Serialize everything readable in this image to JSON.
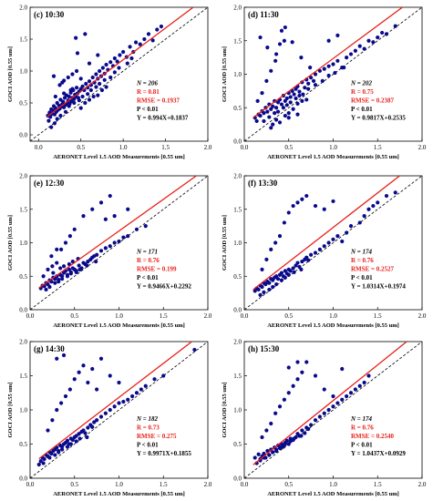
{
  "colors": {
    "point": "#0a0a8c",
    "fit_line": "#e8201a",
    "reference_line": "#000000",
    "stat_red": "#e8201a",
    "stat_black": "#000000"
  },
  "chart_data": [
    {
      "type": "scatter",
      "title": "(c) 10:30",
      "xlabel": "AERONET Level 1.5 AOD Measurements [0.55 um]",
      "ylabel": "GOCI AOD [0.55 um]",
      "xlim": [
        -0.1,
        2.0
      ],
      "ylim": [
        -0.1,
        2.0
      ],
      "ticks": [
        "0.0",
        "0.5",
        "1.0",
        "1.5",
        "2.0"
      ],
      "stats": {
        "N": "N = 206",
        "R": "R = 0.81",
        "RMSE": "RMSE = 0.1937",
        "P": "P < 0.01",
        "eq": "Y = 0.994X+0.1837"
      },
      "fit": {
        "slope": 0.994,
        "intercept": 0.1837
      },
      "x": [
        0.11,
        0.13,
        0.14,
        0.15,
        0.16,
        0.17,
        0.18,
        0.19,
        0.2,
        0.21,
        0.22,
        0.23,
        0.24,
        0.25,
        0.26,
        0.27,
        0.28,
        0.29,
        0.3,
        0.31,
        0.32,
        0.33,
        0.34,
        0.35,
        0.36,
        0.37,
        0.38,
        0.39,
        0.4,
        0.41,
        0.42,
        0.43,
        0.44,
        0.45,
        0.46,
        0.47,
        0.48,
        0.5,
        0.52,
        0.54,
        0.56,
        0.58,
        0.6,
        0.62,
        0.64,
        0.66,
        0.68,
        0.7,
        0.72,
        0.74,
        0.76,
        0.78,
        0.8,
        0.82,
        0.85,
        0.88,
        0.9,
        0.93,
        0.96,
        1.0,
        1.04,
        1.08,
        1.12,
        1.15,
        1.2,
        1.25,
        1.3,
        1.35,
        1.4,
        1.45,
        0.12,
        0.2,
        0.25,
        0.3,
        0.35,
        0.4,
        0.45,
        0.5,
        0.55,
        0.6,
        0.65,
        0.7,
        0.75,
        0.8,
        0.3,
        0.4,
        0.5,
        0.6,
        0.7,
        0.22,
        0.26,
        0.32,
        0.36,
        0.42,
        0.48,
        0.52,
        0.58,
        0.62,
        0.68,
        0.72,
        0.78,
        0.85,
        0.9,
        0.95,
        1.05,
        1.1,
        0.18,
        0.28,
        0.38,
        0.46,
        0.15,
        0.19,
        0.44,
        0.55
      ],
      "y": [
        0.3,
        0.35,
        0.28,
        0.4,
        0.33,
        0.38,
        0.45,
        0.32,
        0.42,
        0.36,
        0.5,
        0.39,
        0.46,
        0.41,
        0.55,
        0.44,
        0.48,
        0.52,
        0.43,
        0.58,
        0.47,
        0.62,
        0.5,
        0.54,
        0.6,
        0.49,
        0.66,
        0.53,
        0.58,
        0.7,
        0.56,
        0.63,
        0.6,
        0.74,
        0.65,
        0.58,
        0.68,
        0.72,
        0.76,
        0.7,
        0.8,
        0.74,
        0.84,
        0.78,
        0.9,
        0.82,
        0.95,
        0.88,
        1.0,
        0.92,
        1.05,
        0.96,
        1.1,
        1.02,
        1.14,
        1.08,
        1.2,
        1.15,
        1.25,
        1.3,
        1.22,
        1.38,
        1.3,
        1.45,
        1.42,
        1.5,
        1.58,
        1.48,
        1.65,
        1.7,
        0.22,
        0.6,
        0.78,
        0.85,
        0.9,
        0.95,
        1.0,
        0.42,
        0.5,
        0.55,
        0.6,
        0.62,
        0.7,
        0.75,
        0.65,
        0.72,
        0.88,
        1.12,
        1.25,
        0.25,
        0.3,
        0.36,
        0.45,
        0.5,
        0.54,
        0.6,
        0.64,
        0.7,
        0.75,
        0.8,
        0.86,
        0.9,
        0.98,
        1.05,
        1.12,
        1.2,
        0.92,
        0.82,
        0.7,
        1.28,
        0.12,
        0.18,
        1.52,
        1.58
      ]
    },
    {
      "type": "scatter",
      "title": "(d) 11:30",
      "xlabel": "AERONET Level 1.5 AOD Measurements [0.55 um]",
      "ylabel": "GOCI AOD [0.55 um]",
      "xlim": [
        0.0,
        2.0
      ],
      "ylim": [
        0.0,
        2.0
      ],
      "ticks": [
        "0.0",
        "0.5",
        "1.0",
        "1.5",
        "2.0"
      ],
      "stats": {
        "N": "N = 202",
        "R": "R = 0.75",
        "RMSE": "RMSE = 0.2387",
        "P": "P < 0.01",
        "eq": "Y = 0.9817X+0.2535"
      },
      "fit": {
        "slope": 0.9817,
        "intercept": 0.2535
      },
      "x": [
        0.12,
        0.14,
        0.16,
        0.18,
        0.2,
        0.22,
        0.24,
        0.26,
        0.28,
        0.3,
        0.32,
        0.34,
        0.36,
        0.38,
        0.4,
        0.42,
        0.44,
        0.46,
        0.48,
        0.5,
        0.52,
        0.54,
        0.56,
        0.58,
        0.6,
        0.62,
        0.65,
        0.68,
        0.7,
        0.72,
        0.75,
        0.78,
        0.8,
        0.85,
        0.9,
        0.95,
        1.0,
        1.05,
        1.1,
        1.15,
        1.2,
        1.25,
        1.3,
        1.35,
        1.4,
        1.45,
        1.5,
        1.55,
        1.6,
        1.7,
        0.15,
        0.2,
        0.25,
        0.3,
        0.35,
        0.4,
        0.45,
        0.5,
        0.55,
        0.6,
        0.65,
        0.7,
        0.22,
        0.28,
        0.34,
        0.38,
        0.44,
        0.48,
        0.52,
        0.58,
        0.62,
        0.66,
        0.72,
        0.8,
        0.88,
        0.95,
        1.02,
        1.12,
        0.18,
        0.26,
        0.36,
        0.42,
        0.46,
        0.54,
        0.64,
        0.74,
        0.3,
        0.4,
        0.5,
        0.6,
        0.95,
        1.05,
        0.32,
        0.36,
        0.46
      ],
      "y": [
        0.35,
        0.3,
        0.4,
        0.38,
        0.45,
        0.42,
        0.5,
        0.44,
        0.55,
        0.48,
        0.52,
        0.6,
        0.5,
        0.58,
        0.62,
        0.55,
        0.68,
        0.6,
        0.64,
        0.72,
        0.66,
        0.75,
        0.7,
        0.78,
        0.82,
        0.74,
        0.88,
        0.8,
        0.92,
        0.86,
        0.95,
        0.9,
        1.0,
        1.05,
        1.08,
        1.12,
        1.15,
        1.2,
        1.1,
        1.25,
        1.3,
        1.35,
        1.42,
        1.38,
        1.5,
        1.48,
        1.55,
        1.62,
        1.6,
        1.72,
        0.6,
        0.72,
        0.9,
        1.05,
        1.2,
        1.45,
        1.5,
        0.42,
        0.48,
        0.56,
        0.6,
        0.62,
        0.3,
        0.36,
        0.42,
        0.44,
        0.5,
        0.54,
        0.58,
        0.64,
        0.68,
        0.7,
        0.78,
        0.84,
        0.9,
        0.98,
        1.02,
        1.1,
        1.55,
        1.4,
        1.3,
        1.65,
        1.7,
        1.48,
        1.25,
        1.1,
        0.2,
        0.28,
        0.35,
        0.4,
        1.5,
        1.58,
        0.25,
        0.32,
        0.38
      ]
    },
    {
      "type": "scatter",
      "title": "(e) 12:30",
      "xlabel": "AERONET Level 1.5 AOD Measurements [0.55 um]",
      "ylabel": "GOCI AOD [0.55 um]",
      "xlim": [
        0.0,
        2.0
      ],
      "ylim": [
        0.0,
        2.0
      ],
      "ticks": [
        "0.0",
        "0.5",
        "1.0",
        "1.5",
        "2.0"
      ],
      "stats": {
        "N": "N = 171",
        "R": "R = 0.76",
        "RMSE": "RMSE = 0.199",
        "P": "P < 0.01",
        "eq": "Y = 0.9466X+0.2292"
      },
      "fit": {
        "slope": 0.9466,
        "intercept": 0.2292
      },
      "x": [
        0.12,
        0.14,
        0.16,
        0.18,
        0.2,
        0.22,
        0.24,
        0.26,
        0.28,
        0.3,
        0.32,
        0.34,
        0.36,
        0.38,
        0.4,
        0.42,
        0.44,
        0.46,
        0.48,
        0.5,
        0.52,
        0.55,
        0.58,
        0.6,
        0.62,
        0.65,
        0.68,
        0.7,
        0.72,
        0.75,
        0.8,
        0.85,
        0.9,
        0.95,
        1.0,
        1.05,
        1.1,
        1.2,
        1.3,
        0.15,
        0.2,
        0.25,
        0.3,
        0.35,
        0.4,
        0.45,
        0.5,
        0.6,
        0.7,
        0.8,
        0.9,
        0.18,
        0.22,
        0.28,
        0.32,
        0.36,
        0.42,
        0.46,
        0.52,
        0.56,
        0.64,
        0.74,
        0.26,
        0.34,
        0.38,
        0.44,
        0.48,
        0.54,
        0.24,
        0.3,
        0.85,
        0.95,
        1.1
      ],
      "y": [
        0.32,
        0.36,
        0.35,
        0.4,
        0.38,
        0.44,
        0.42,
        0.48,
        0.46,
        0.5,
        0.45,
        0.52,
        0.5,
        0.55,
        0.58,
        0.52,
        0.6,
        0.56,
        0.62,
        0.6,
        0.58,
        0.66,
        0.62,
        0.7,
        0.68,
        0.72,
        0.75,
        0.78,
        0.8,
        0.82,
        0.88,
        0.92,
        0.95,
        1.0,
        1.02,
        1.08,
        1.1,
        1.2,
        1.25,
        0.5,
        0.6,
        0.65,
        0.7,
        0.9,
        1.0,
        1.1,
        1.2,
        1.4,
        1.5,
        1.6,
        1.7,
        0.3,
        0.34,
        0.4,
        0.42,
        0.46,
        0.5,
        0.54,
        0.56,
        0.6,
        0.66,
        0.72,
        0.55,
        0.62,
        0.65,
        0.68,
        0.72,
        0.76,
        0.8,
        0.9,
        1.35,
        1.4,
        1.5
      ]
    },
    {
      "type": "scatter",
      "title": "(f) 13:30",
      "xlabel": "AERONET Level 1.5 AOD Measurements [0.55 um]",
      "ylabel": "GOCI AOD [0.55 um]",
      "xlim": [
        0.0,
        2.0
      ],
      "ylim": [
        0.0,
        2.0
      ],
      "ticks": [
        "0.0",
        "0.5",
        "1.0",
        "1.5",
        "2.0"
      ],
      "stats": {
        "N": "N = 174",
        "R": "R = 0.76",
        "RMSE": "RMSE = 0.2527",
        "P": "P < 0.01",
        "eq": "Y = 1.0314X+0.1974"
      },
      "fit": {
        "slope": 1.0314,
        "intercept": 0.1974
      },
      "x": [
        0.12,
        0.14,
        0.16,
        0.18,
        0.2,
        0.22,
        0.24,
        0.26,
        0.28,
        0.3,
        0.32,
        0.34,
        0.36,
        0.38,
        0.4,
        0.42,
        0.44,
        0.46,
        0.48,
        0.5,
        0.52,
        0.55,
        0.58,
        0.6,
        0.62,
        0.65,
        0.68,
        0.7,
        0.72,
        0.75,
        0.8,
        0.85,
        0.9,
        0.95,
        1.0,
        1.05,
        1.1,
        1.15,
        1.2,
        1.3,
        1.35,
        1.4,
        1.45,
        1.5,
        1.6,
        1.7,
        0.2,
        0.25,
        0.3,
        0.35,
        0.4,
        0.45,
        0.5,
        0.55,
        0.6,
        0.65,
        0.7,
        0.8,
        0.9,
        1.0,
        0.18,
        0.22,
        0.28,
        0.32,
        0.36,
        0.42,
        0.46,
        0.5,
        0.56,
        0.64
      ],
      "y": [
        0.28,
        0.32,
        0.3,
        0.36,
        0.34,
        0.4,
        0.38,
        0.42,
        0.4,
        0.46,
        0.44,
        0.48,
        0.5,
        0.46,
        0.52,
        0.55,
        0.5,
        0.58,
        0.54,
        0.6,
        0.58,
        0.62,
        0.66,
        0.7,
        0.64,
        0.72,
        0.75,
        0.78,
        0.74,
        0.82,
        0.85,
        0.9,
        0.95,
        1.0,
        1.05,
        1.1,
        1.02,
        1.15,
        1.25,
        1.3,
        1.4,
        1.5,
        1.55,
        1.6,
        1.7,
        1.75,
        0.6,
        0.75,
        0.9,
        1.0,
        1.1,
        1.3,
        1.45,
        1.55,
        1.6,
        1.65,
        1.7,
        1.55,
        1.5,
        1.62,
        0.22,
        0.26,
        0.3,
        0.34,
        0.38,
        0.44,
        0.48,
        0.52,
        0.56,
        0.6
      ]
    },
    {
      "type": "scatter",
      "title": "(g) 14:30",
      "xlabel": "AERONET Level 1.5 AOD Measurements [0.55 um]",
      "ylabel": "GOCI AOD [0.55 um]",
      "xlim": [
        0.0,
        2.0
      ],
      "ylim": [
        0.0,
        2.0
      ],
      "ticks": [
        "0.0",
        "0.5",
        "1.0",
        "1.5",
        "2.0"
      ],
      "stats": {
        "N": "N = 182",
        "R": "R = 0.73",
        "RMSE": "RMSE = 0.275",
        "P": "P < 0.01",
        "eq": "Y = 0.9971X+0.1855"
      },
      "fit": {
        "slope": 0.9971,
        "intercept": 0.1855
      },
      "x": [
        0.1,
        0.12,
        0.14,
        0.16,
        0.18,
        0.2,
        0.22,
        0.24,
        0.26,
        0.28,
        0.3,
        0.32,
        0.34,
        0.36,
        0.38,
        0.4,
        0.42,
        0.44,
        0.46,
        0.48,
        0.5,
        0.52,
        0.55,
        0.58,
        0.6,
        0.62,
        0.65,
        0.68,
        0.7,
        0.72,
        0.75,
        0.8,
        0.85,
        0.9,
        0.95,
        1.0,
        1.05,
        1.1,
        1.15,
        1.2,
        1.25,
        1.3,
        1.4,
        1.5,
        1.85,
        0.2,
        0.25,
        0.3,
        0.35,
        0.4,
        0.45,
        0.5,
        0.55,
        0.6,
        0.65,
        0.7,
        0.75,
        0.8,
        0.9,
        1.0,
        0.15,
        0.22,
        0.28,
        0.32,
        0.36,
        0.42,
        0.46,
        0.52,
        0.56,
        0.64,
        0.3,
        0.38
      ],
      "y": [
        0.2,
        0.25,
        0.3,
        0.28,
        0.34,
        0.32,
        0.38,
        0.36,
        0.4,
        0.42,
        0.45,
        0.4,
        0.48,
        0.46,
        0.5,
        0.52,
        0.55,
        0.5,
        0.58,
        0.56,
        0.6,
        0.62,
        0.65,
        0.68,
        0.7,
        0.66,
        0.74,
        0.78,
        0.75,
        0.82,
        0.85,
        0.9,
        0.95,
        1.0,
        1.05,
        1.1,
        1.12,
        1.15,
        1.2,
        1.25,
        1.3,
        1.35,
        1.45,
        1.5,
        1.88,
        0.7,
        0.85,
        1.0,
        1.1,
        1.2,
        1.3,
        1.45,
        1.55,
        1.65,
        1.4,
        1.6,
        1.3,
        1.75,
        1.5,
        1.4,
        0.22,
        0.3,
        0.34,
        0.38,
        0.42,
        0.46,
        0.5,
        0.54,
        0.58,
        0.6,
        1.75,
        1.8
      ]
    },
    {
      "type": "scatter",
      "title": "(h) 15:30",
      "xlabel": "AERONET Level 1.5 AOD Measurements [0.55 um]",
      "ylabel": "GOCI AOD [0.55 um]",
      "xlim": [
        0.0,
        2.0
      ],
      "ylim": [
        0.0,
        2.0
      ],
      "ticks": [
        "0.0",
        "0.5",
        "1.0",
        "1.5",
        "2.0"
      ],
      "stats": {
        "N": "N = 174",
        "R": "R = 0.76",
        "RMSE": "RMSE = 0.2540",
        "P": "P < 0.01",
        "eq": "Y = 1.0437X+0.0929"
      },
      "fit": {
        "slope": 1.0437,
        "intercept": 0.0929
      },
      "x": [
        0.12,
        0.14,
        0.16,
        0.18,
        0.2,
        0.22,
        0.24,
        0.26,
        0.28,
        0.3,
        0.32,
        0.34,
        0.36,
        0.38,
        0.4,
        0.42,
        0.44,
        0.46,
        0.48,
        0.5,
        0.52,
        0.55,
        0.58,
        0.6,
        0.62,
        0.65,
        0.68,
        0.7,
        0.72,
        0.75,
        0.8,
        0.85,
        0.9,
        0.95,
        1.0,
        1.05,
        1.1,
        1.15,
        1.2,
        1.25,
        1.3,
        1.35,
        1.4,
        0.2,
        0.25,
        0.3,
        0.35,
        0.4,
        0.45,
        0.5,
        0.55,
        0.6,
        0.65,
        0.7,
        0.8,
        0.9,
        1.0,
        1.1,
        0.18,
        0.22,
        0.28,
        0.32,
        0.36,
        0.42,
        0.46,
        0.52,
        0.56,
        0.64,
        0.5,
        0.6
      ],
      "y": [
        0.3,
        0.22,
        0.35,
        0.28,
        0.32,
        0.36,
        0.3,
        0.4,
        0.34,
        0.42,
        0.38,
        0.45,
        0.4,
        0.48,
        0.44,
        0.5,
        0.46,
        0.52,
        0.55,
        0.5,
        0.58,
        0.56,
        0.6,
        0.65,
        0.62,
        0.7,
        0.66,
        0.74,
        0.72,
        0.78,
        0.85,
        0.9,
        0.95,
        1.0,
        1.05,
        1.1,
        1.15,
        1.2,
        1.25,
        1.3,
        1.35,
        1.4,
        1.5,
        0.6,
        0.7,
        0.8,
        0.95,
        1.05,
        1.15,
        1.25,
        1.35,
        1.45,
        1.55,
        1.7,
        1.5,
        1.3,
        1.2,
        1.6,
        0.26,
        0.3,
        0.34,
        0.38,
        0.42,
        0.46,
        0.5,
        0.54,
        0.58,
        0.62,
        1.62,
        1.7
      ]
    }
  ]
}
